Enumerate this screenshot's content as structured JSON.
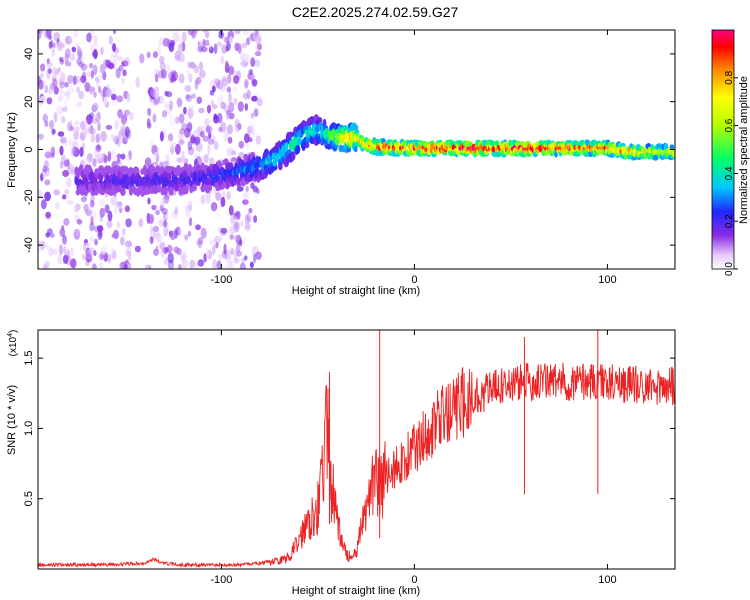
{
  "title": "C2E2.2025.274.02.59.G27",
  "chart_data": [
    {
      "type": "heatmap",
      "xlabel": "Height of straight line (km)",
      "ylabel": "Frequency (Hz)",
      "xlim": [
        -195,
        135
      ],
      "ylim": [
        -50,
        50
      ],
      "xticks": [
        -100,
        0,
        100
      ],
      "yticks": [
        -40,
        -20,
        0,
        20,
        40
      ],
      "colorbar": {
        "label": "Normalized spectral amplitude",
        "range": [
          0,
          1
        ],
        "ticks": [
          "0.0",
          "0.2",
          "0.4",
          "0.6",
          "0.8"
        ],
        "tick_values": [
          0,
          0.2,
          0.4,
          0.6,
          0.8
        ]
      },
      "ridge": {
        "x": [
          -170,
          -150,
          -130,
          -110,
          -90,
          -80,
          -70,
          -60,
          -55,
          -50,
          -45,
          -40,
          -35,
          -30,
          -25,
          -20,
          0,
          20,
          40,
          60,
          80,
          100,
          110,
          120,
          130
        ],
        "frequency": [
          -13,
          -13,
          -13,
          -12,
          -9,
          -7,
          -3,
          4,
          7,
          8,
          6,
          5,
          5,
          5,
          2,
          1,
          0.5,
          0.5,
          0.5,
          0.5,
          0.5,
          0.5,
          -1,
          -1,
          -1
        ],
        "amplitude": [
          0.18,
          0.2,
          0.2,
          0.22,
          0.28,
          0.32,
          0.4,
          0.45,
          0.42,
          0.38,
          0.45,
          0.6,
          0.75,
          0.8,
          0.85,
          0.9,
          0.95,
          0.97,
          0.97,
          0.96,
          0.9,
          0.85,
          0.8,
          0.75,
          0.7
        ]
      },
      "noise_region": {
        "x_range": [
          -195,
          -80
        ],
        "frequency_range": [
          -50,
          50
        ],
        "amplitude": 0.1
      }
    },
    {
      "type": "line",
      "xlabel": "Height of straight line (km)",
      "ylabel": "SNR (10 * v/v)",
      "ymultiplier": "(x10",
      "ymultiplier_exp": "4",
      "ymultiplier_close": ")",
      "xlim": [
        -195,
        135
      ],
      "ylim": [
        0,
        1.7
      ],
      "xticks": [
        -100,
        0,
        100
      ],
      "yticks": [
        "0.5",
        "1.0",
        "1.5"
      ],
      "ytick_values": [
        0.5,
        1.0,
        1.5
      ],
      "color": "#ee2222",
      "series": [
        {
          "name": "SNR",
          "x": [
            -195,
            -180,
            -160,
            -140,
            -135,
            -130,
            -120,
            -100,
            -90,
            -80,
            -75,
            -70,
            -65,
            -60,
            -55,
            -50,
            -47,
            -45,
            -43,
            -40,
            -38,
            -35,
            -32,
            -30,
            -27,
            -25,
            -22,
            -20,
            -18,
            -15,
            -10,
            -5,
            0,
            5,
            10,
            15,
            20,
            25,
            30,
            40,
            50,
            60,
            70,
            80,
            90,
            100,
            110,
            120,
            135
          ],
          "y": [
            0.03,
            0.03,
            0.03,
            0.04,
            0.07,
            0.04,
            0.03,
            0.03,
            0.03,
            0.04,
            0.05,
            0.06,
            0.08,
            0.2,
            0.35,
            0.45,
            0.75,
            1.0,
            0.6,
            0.35,
            0.2,
            0.1,
            0.08,
            0.12,
            0.3,
            0.45,
            0.6,
            0.7,
            0.55,
            0.65,
            0.72,
            0.78,
            0.85,
            0.95,
            1.02,
            1.08,
            1.12,
            1.18,
            1.22,
            1.28,
            1.32,
            1.33,
            1.34,
            1.33,
            1.34,
            1.33,
            1.32,
            1.3,
            1.3
          ]
        }
      ],
      "spikes": [
        {
          "x": -44,
          "y": 1.4
        },
        {
          "x": -18,
          "y": 1.7
        },
        {
          "x": 57,
          "y": 1.65
        },
        {
          "x": 95,
          "y": 1.7
        }
      ]
    }
  ]
}
